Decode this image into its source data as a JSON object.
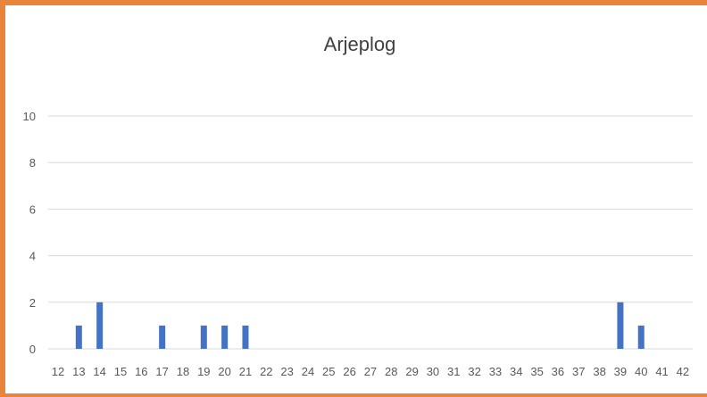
{
  "chart_data": {
    "type": "bar",
    "title": "Arjeplog",
    "xlabel": "",
    "ylabel": "",
    "categories": [
      "12",
      "13",
      "14",
      "15",
      "16",
      "17",
      "18",
      "19",
      "20",
      "21",
      "22",
      "23",
      "24",
      "25",
      "26",
      "27",
      "28",
      "29",
      "30",
      "31",
      "32",
      "33",
      "34",
      "35",
      "36",
      "37",
      "38",
      "39",
      "40",
      "41",
      "42"
    ],
    "values": [
      0,
      1,
      2,
      0,
      0,
      1,
      0,
      1,
      1,
      1,
      0,
      0,
      0,
      0,
      0,
      0,
      0,
      0,
      0,
      0,
      0,
      0,
      0,
      0,
      0,
      0,
      0,
      2,
      1,
      0,
      0
    ],
    "yticks": [
      0,
      2,
      4,
      6,
      8,
      10
    ],
    "ylim": [
      0,
      10
    ],
    "grid": true,
    "legend": "none",
    "colors": {
      "bar": "#4472c4",
      "frame": "#e8853b"
    }
  }
}
